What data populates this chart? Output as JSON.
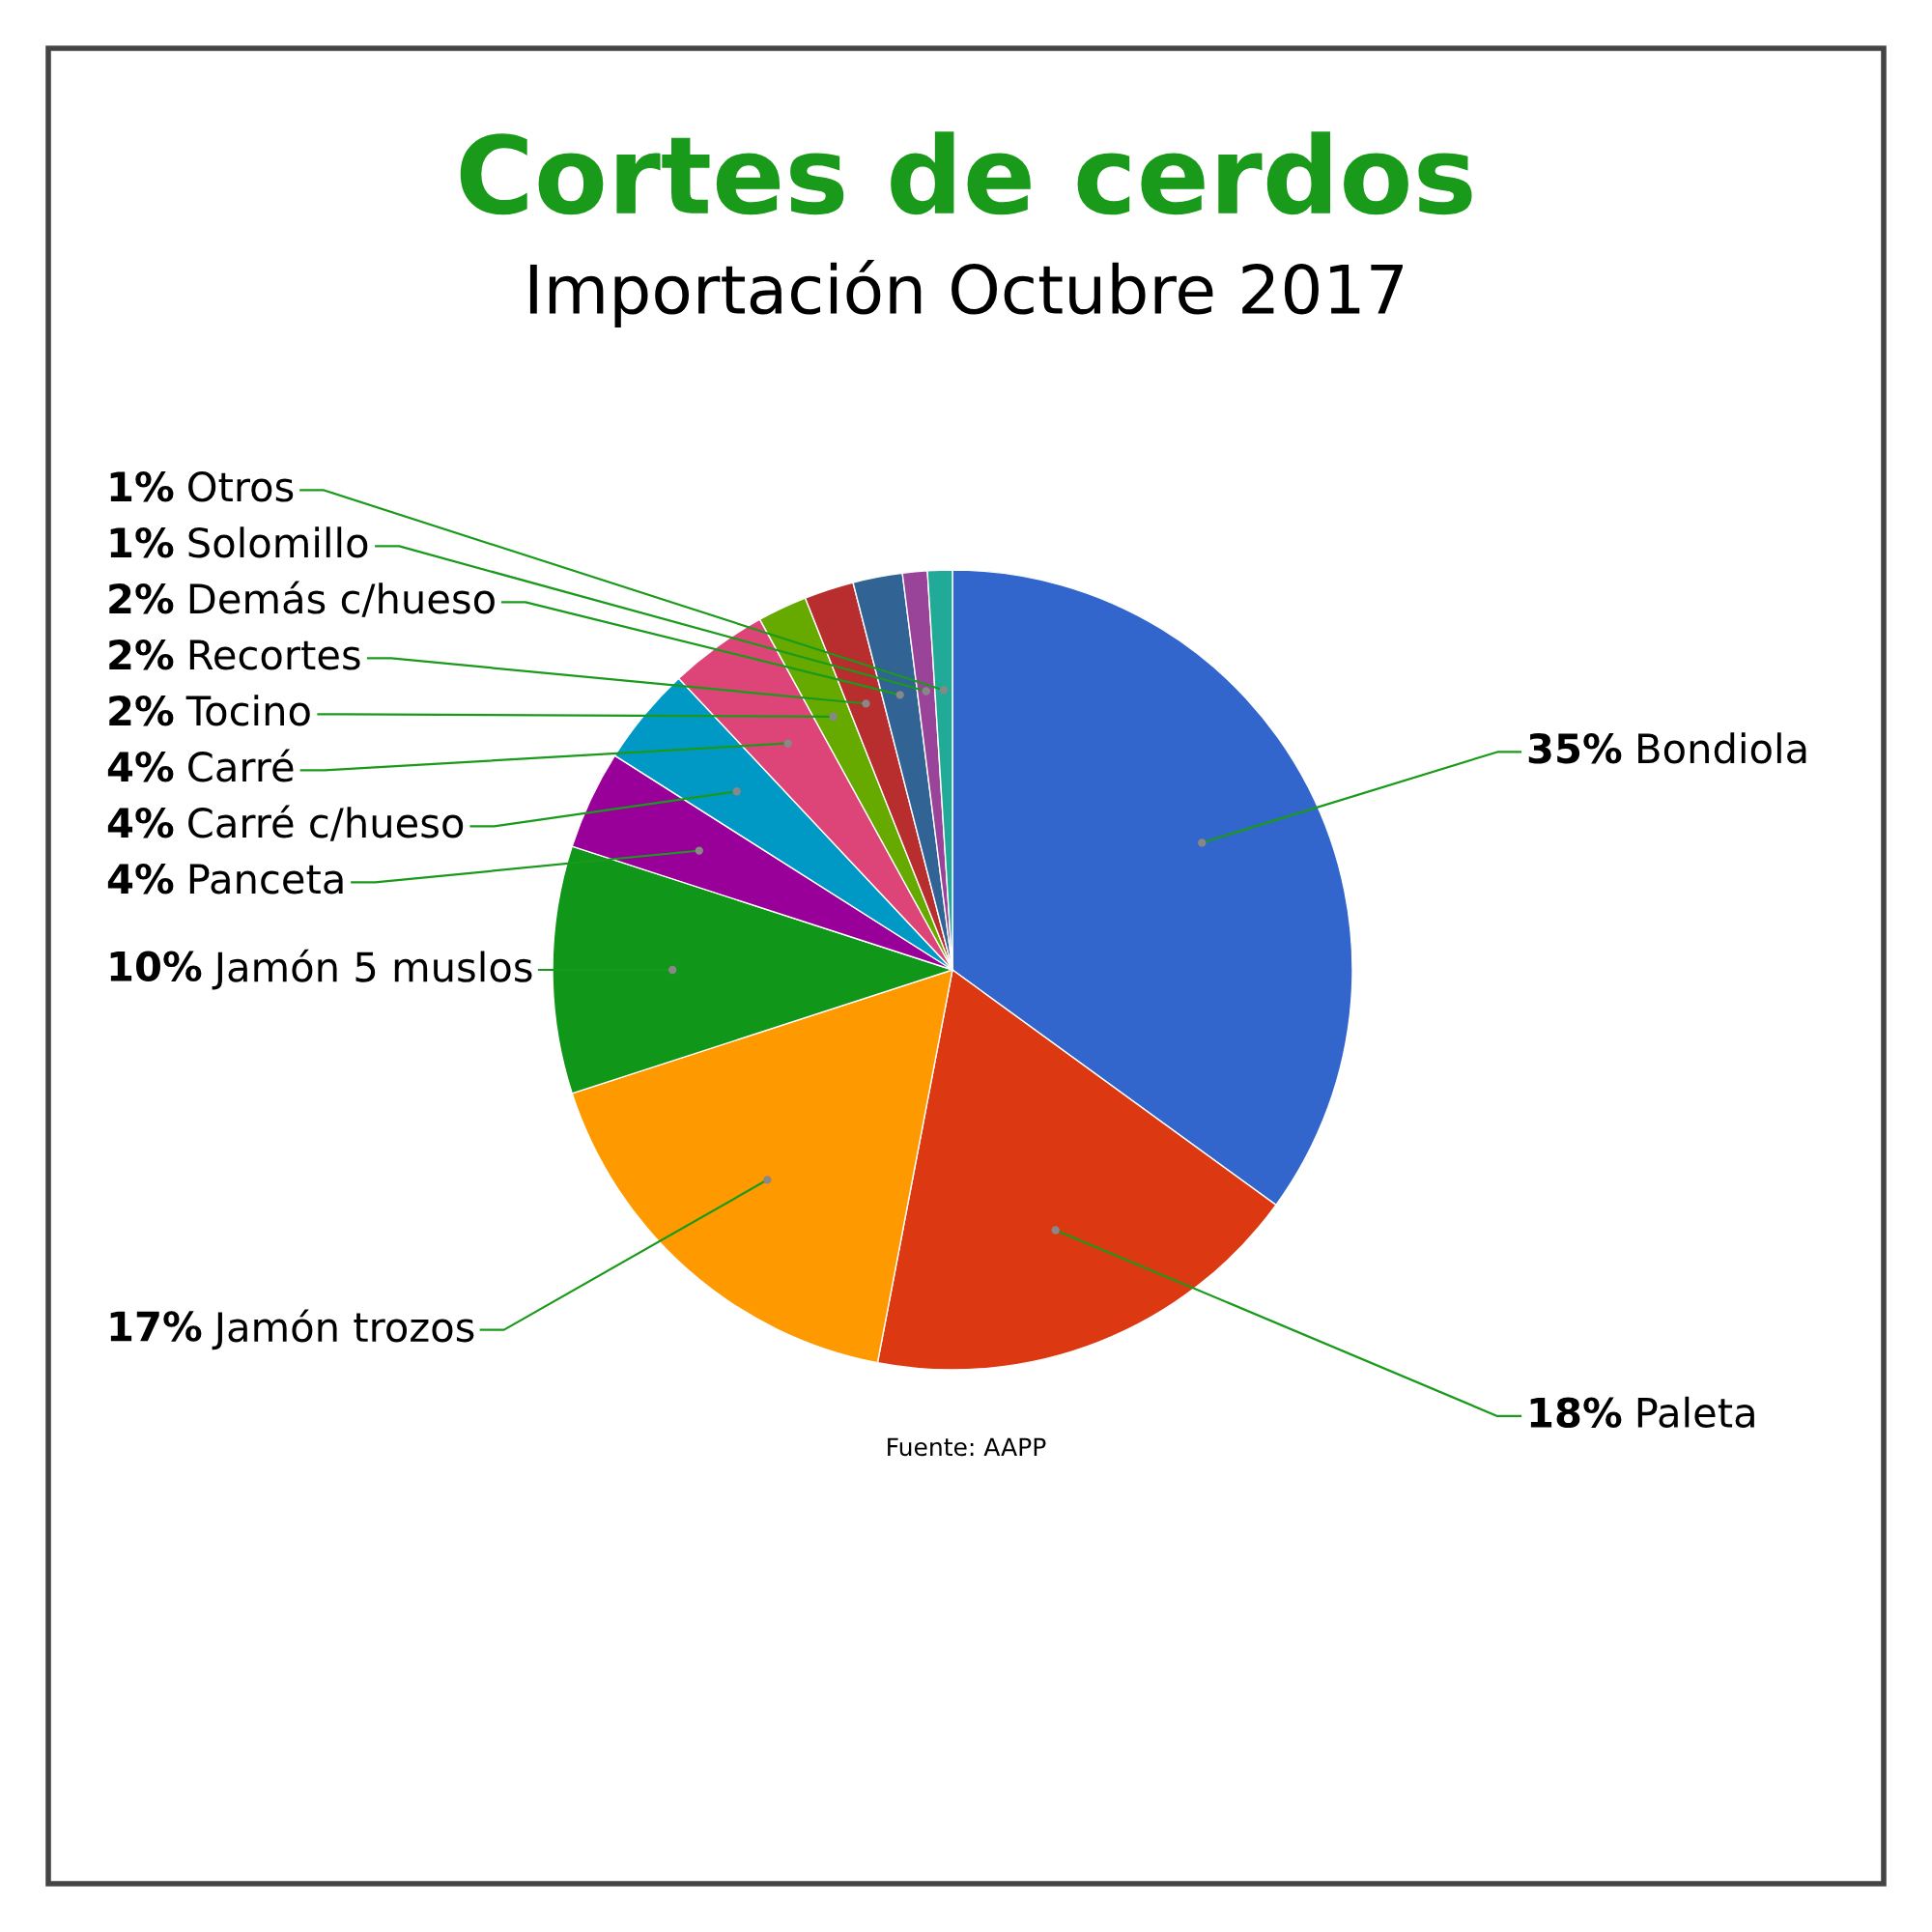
{
  "chart_data": {
    "type": "pie",
    "title": "Cortes de cerdos",
    "subtitle": "Importación Octubre 2017",
    "categories": [
      "Bondiola",
      "Paleta",
      "Jamón trozos",
      "Jamón 5 muslos",
      "Panceta",
      "Carré c/hueso",
      "Carré",
      "Tocino",
      "Recortes",
      "Demás c/hueso",
      "Solomillo",
      "Otros"
    ],
    "values": [
      35,
      18,
      17,
      10,
      4,
      4,
      4,
      2,
      2,
      2,
      1,
      1
    ],
    "colors": [
      "#3366cc",
      "#dc3912",
      "#ff9900",
      "#109618",
      "#990099",
      "#0099c6",
      "#dd4477",
      "#66aa00",
      "#b82e2e",
      "#316395",
      "#994499",
      "#22aa99"
    ],
    "value_labels": [
      "35%",
      "18%",
      "17%",
      "10%",
      "4%",
      "4%",
      "4%",
      "2%",
      "2%",
      "2%",
      "1%",
      "1%"
    ],
    "legend": false,
    "annotations": [
      "Fuente: AAPP"
    ]
  }
}
